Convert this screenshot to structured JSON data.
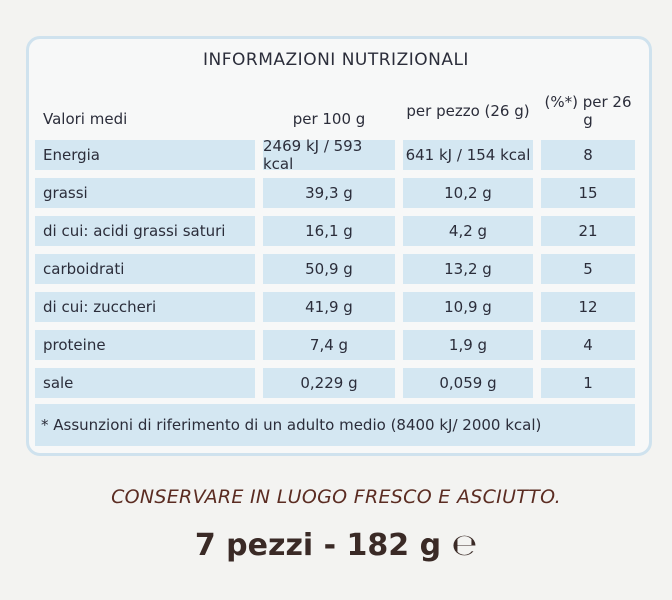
{
  "title": "INFORMAZIONI NUTRIZIONALI",
  "table": {
    "header": [
      "Valori medi",
      "per 100 g",
      "per pezzo (26 g)",
      "(%*) per 26 g"
    ],
    "rows": [
      [
        "Energia",
        "2469 kJ / 593 kcal",
        "641 kJ / 154 kcal",
        "8"
      ],
      [
        "grassi",
        "39,3 g",
        "10,2 g",
        "15"
      ],
      [
        "di cui: acidi grassi saturi",
        "16,1 g",
        "4,2 g",
        "21"
      ],
      [
        "carboidrati",
        "50,9 g",
        "13,2 g",
        "5"
      ],
      [
        "di cui: zuccheri",
        "41,9 g",
        "10,9 g",
        "12"
      ],
      [
        "proteine",
        "7,4 g",
        "1,9 g",
        "4"
      ],
      [
        "sale",
        "0,229 g",
        "0,059 g",
        "1"
      ]
    ],
    "footnote": "* Assunzioni di riferimento di un adulto medio (8400 kJ/ 2000 kcal)"
  },
  "storage": "CONSERVARE IN LUOGO FRESCO E ASCIUTTO.",
  "weight": "7 pezzi - 182 g ℮"
}
